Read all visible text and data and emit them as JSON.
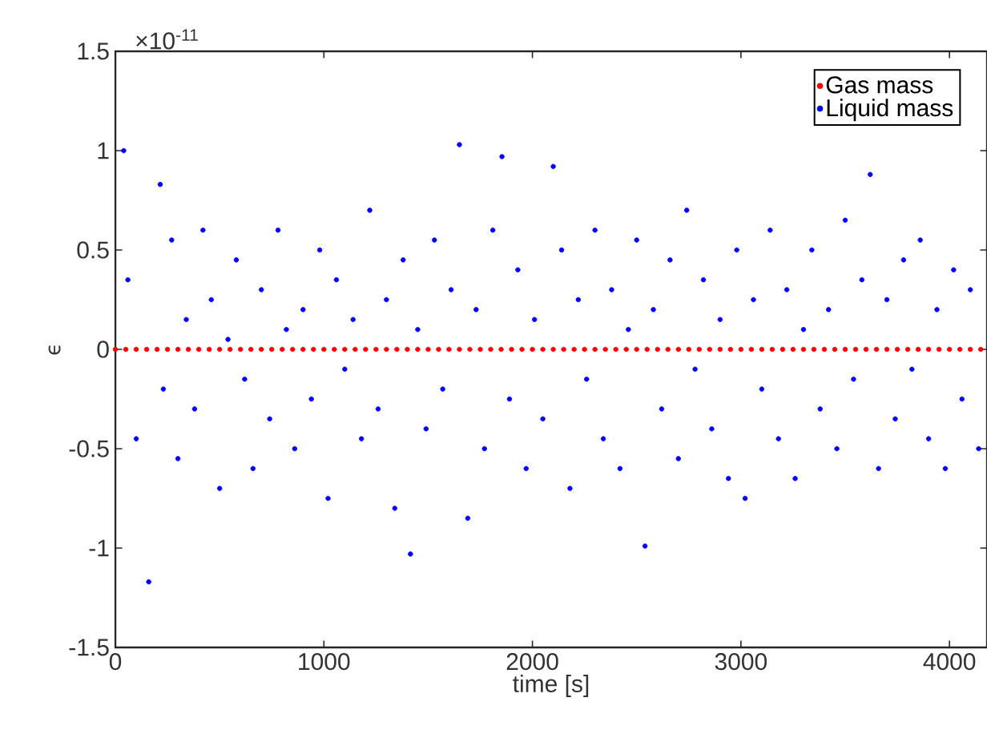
{
  "chart_data": {
    "type": "scatter",
    "xlabel": "time [s]",
    "ylabel": "ϵ",
    "annotations": [
      "×10$^{-11}$"
    ],
    "xlim": [
      0,
      4180
    ],
    "ylim": [
      -1.5,
      1.5
    ],
    "xticks": [
      0,
      1000,
      2000,
      3000,
      4000
    ],
    "yticks": [
      -1.5,
      -1,
      -0.5,
      0,
      0.5,
      1,
      1.5
    ],
    "grid": false,
    "legend": "top right",
    "marker": "circle",
    "series": [
      {
        "name": "Gas mass",
        "color": "#ff0000",
        "x": [
          0,
          50,
          100,
          150,
          200,
          250,
          300,
          350,
          400,
          450,
          500,
          550,
          600,
          650,
          700,
          750,
          800,
          850,
          900,
          950,
          1000,
          1050,
          1100,
          1150,
          1200,
          1250,
          1300,
          1350,
          1400,
          1450,
          1500,
          1550,
          1600,
          1650,
          1700,
          1750,
          1800,
          1850,
          1900,
          1950,
          2000,
          2050,
          2100,
          2150,
          2200,
          2250,
          2300,
          2350,
          2400,
          2450,
          2500,
          2550,
          2600,
          2650,
          2700,
          2750,
          2800,
          2850,
          2900,
          2950,
          3000,
          3050,
          3100,
          3150,
          3200,
          3250,
          3300,
          3350,
          3400,
          3450,
          3500,
          3550,
          3600,
          3650,
          3700,
          3750,
          3800,
          3850,
          3900,
          3950,
          4000,
          4050,
          4100,
          4150
        ],
        "values": [
          0,
          0,
          0,
          0,
          0,
          0,
          0,
          0,
          0,
          0,
          0,
          0,
          0,
          0,
          0,
          0,
          0,
          0,
          0,
          0,
          0,
          0,
          0,
          0,
          0,
          0,
          0,
          0,
          0,
          0,
          0,
          0,
          0,
          0,
          0,
          0,
          0,
          0,
          0,
          0,
          0,
          0,
          0,
          0,
          0,
          0,
          0,
          0,
          0,
          0,
          0,
          0,
          0,
          0,
          0,
          0,
          0,
          0,
          0,
          0,
          0,
          0,
          0,
          0,
          0,
          0,
          0,
          0,
          0,
          0,
          0,
          0,
          0,
          0,
          0,
          0,
          0,
          0,
          0,
          0,
          0,
          0,
          0,
          0
        ]
      },
      {
        "name": "Liquid mass",
        "color": "#0000ff",
        "x": [
          40,
          60,
          100,
          160,
          215,
          230,
          270,
          300,
          340,
          380,
          420,
          460,
          500,
          540,
          580,
          620,
          660,
          700,
          740,
          780,
          820,
          860,
          900,
          940,
          980,
          1020,
          1060,
          1100,
          1140,
          1180,
          1220,
          1260,
          1300,
          1340,
          1380,
          1415,
          1450,
          1490,
          1530,
          1570,
          1610,
          1650,
          1690,
          1730,
          1770,
          1810,
          1854,
          1890,
          1930,
          1970,
          2010,
          2050,
          2100,
          2140,
          2180,
          2220,
          2260,
          2300,
          2340,
          2380,
          2420,
          2460,
          2500,
          2540,
          2580,
          2620,
          2660,
          2700,
          2740,
          2780,
          2820,
          2860,
          2900,
          2940,
          2980,
          3020,
          3060,
          3100,
          3140,
          3180,
          3220,
          3260,
          3300,
          3340,
          3380,
          3420,
          3460,
          3500,
          3540,
          3580,
          3620,
          3660,
          3700,
          3740,
          3780,
          3820,
          3860,
          3900,
          3940,
          3980,
          4020,
          4060,
          4100,
          4140
        ],
        "values": [
          1.0,
          0.35,
          -0.45,
          -1.17,
          0.83,
          -0.2,
          0.55,
          -0.55,
          0.15,
          -0.3,
          0.6,
          0.25,
          -0.7,
          0.05,
          0.45,
          -0.15,
          -0.6,
          0.3,
          -0.35,
          0.6,
          0.1,
          -0.5,
          0.2,
          -0.25,
          0.5,
          -0.75,
          0.35,
          -0.1,
          0.15,
          -0.45,
          0.7,
          -0.3,
          0.25,
          -0.8,
          0.45,
          -1.03,
          0.1,
          -0.4,
          0.55,
          -0.2,
          0.3,
          1.03,
          -0.85,
          0.2,
          -0.5,
          0.6,
          0.97,
          -0.25,
          0.4,
          -0.6,
          0.15,
          -0.35,
          0.92,
          0.5,
          -0.7,
          0.25,
          -0.15,
          0.6,
          -0.45,
          0.3,
          -0.6,
          0.1,
          0.55,
          -0.99,
          0.2,
          -0.3,
          0.45,
          -0.55,
          0.7,
          -0.1,
          0.35,
          -0.4,
          0.15,
          -0.65,
          0.5,
          -0.75,
          0.25,
          -0.2,
          0.6,
          -0.45,
          0.3,
          -0.65,
          0.1,
          0.5,
          -0.3,
          0.2,
          -0.5,
          0.65,
          -0.15,
          0.35,
          0.88,
          -0.6,
          0.25,
          -0.35,
          0.45,
          -0.1,
          0.55,
          -0.45,
          0.2,
          -0.6,
          0.4,
          -0.25,
          0.3,
          -0.5
        ]
      }
    ]
  }
}
